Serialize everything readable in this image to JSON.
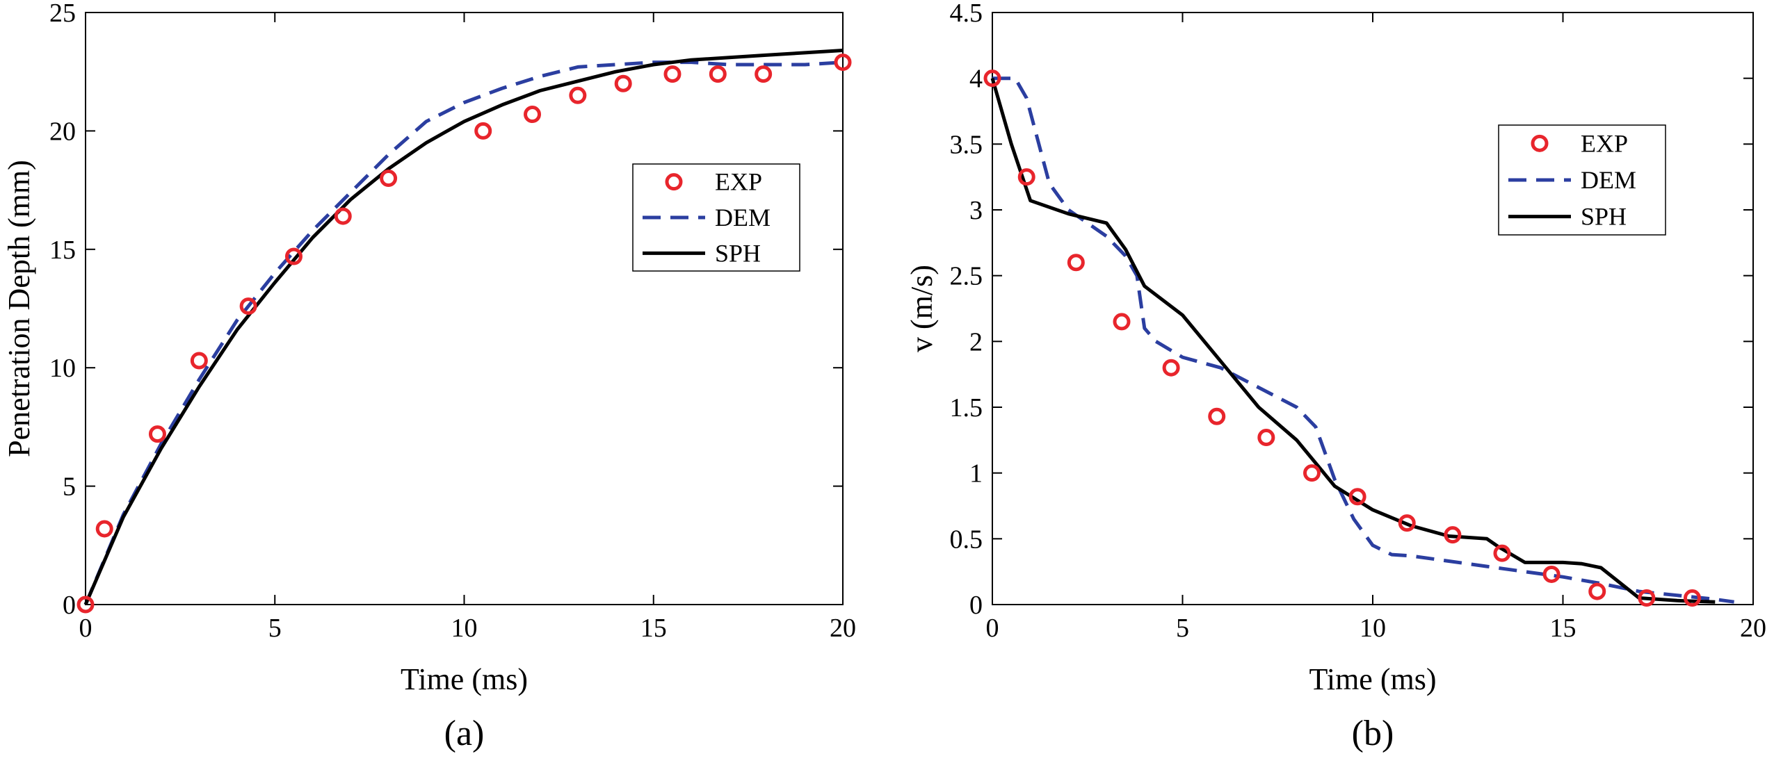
{
  "chart_data": [
    {
      "type": "line",
      "panel_label": "(a)",
      "xlabel": "Time (ms)",
      "ylabel": "Penetration Depth (mm)",
      "xlim": [
        0,
        20
      ],
      "ylim": [
        0,
        25
      ],
      "xticks": [
        0,
        5,
        10,
        15,
        20
      ],
      "yticks": [
        0,
        5,
        10,
        15,
        20,
        25
      ],
      "legend_position": "right",
      "series": [
        {
          "name": "EXP",
          "style": "markers",
          "color": "#e8252c",
          "x": [
            0,
            0.5,
            1.9,
            3.0,
            4.3,
            5.5,
            6.8,
            8.0,
            10.5,
            11.8,
            13.0,
            14.2,
            15.5,
            16.7,
            17.9,
            20.0
          ],
          "y": [
            0,
            3.2,
            7.2,
            10.3,
            12.6,
            14.7,
            16.4,
            18.0,
            20.0,
            20.7,
            21.5,
            22.0,
            22.4,
            22.4,
            22.4,
            22.9
          ]
        },
        {
          "name": "DEM",
          "style": "dashed",
          "color": "#2b3ea0",
          "x": [
            0,
            1,
            2,
            3,
            4,
            5,
            6,
            7,
            8,
            9,
            10,
            11,
            12,
            13,
            14,
            15,
            16,
            17,
            18,
            19,
            20
          ],
          "y": [
            0,
            3.8,
            6.8,
            9.5,
            12.0,
            14.0,
            15.8,
            17.4,
            19.0,
            20.4,
            21.2,
            21.8,
            22.3,
            22.7,
            22.8,
            22.9,
            22.9,
            22.8,
            22.8,
            22.8,
            22.9
          ]
        },
        {
          "name": "SPH",
          "style": "solid",
          "color": "#000000",
          "x": [
            0,
            1,
            2,
            3,
            4,
            5,
            6,
            7,
            8,
            9,
            10,
            11,
            12,
            13,
            14,
            15,
            16,
            17,
            18,
            19,
            20
          ],
          "y": [
            0,
            3.7,
            6.6,
            9.2,
            11.6,
            13.6,
            15.5,
            17.1,
            18.4,
            19.5,
            20.4,
            21.1,
            21.7,
            22.1,
            22.5,
            22.8,
            23.0,
            23.1,
            23.2,
            23.3,
            23.4
          ]
        }
      ]
    },
    {
      "type": "line",
      "panel_label": "(b)",
      "xlabel": "Time (ms)",
      "ylabel": "v (m/s)",
      "xlim": [
        0,
        20
      ],
      "ylim": [
        0,
        4.5
      ],
      "xticks": [
        0,
        5,
        10,
        15,
        20
      ],
      "yticks": [
        0,
        0.5,
        1,
        1.5,
        2,
        2.5,
        3,
        3.5,
        4,
        4.5
      ],
      "legend_position": "top-right",
      "series": [
        {
          "name": "EXP",
          "style": "markers",
          "color": "#e8252c",
          "x": [
            0,
            0.9,
            2.2,
            3.4,
            4.7,
            5.9,
            7.2,
            8.4,
            9.6,
            10.9,
            12.1,
            13.4,
            14.7,
            15.9,
            17.2,
            18.4
          ],
          "y": [
            4.0,
            3.25,
            2.6,
            2.15,
            1.8,
            1.43,
            1.27,
            1.0,
            0.82,
            0.62,
            0.53,
            0.39,
            0.23,
            0.1,
            0.05,
            0.05
          ]
        },
        {
          "name": "DEM",
          "style": "dashed",
          "color": "#2b3ea0",
          "x": [
            0,
            0.6,
            0.9,
            1.5,
            2.0,
            3.0,
            3.5,
            3.8,
            4.0,
            4.3,
            5.0,
            6.0,
            7.0,
            8.0,
            8.5,
            9.0,
            9.5,
            10.0,
            10.5,
            11.0,
            12.0,
            13.0,
            14.0,
            15.0,
            16.0,
            17.0,
            18.0,
            19.0,
            19.5
          ],
          "y": [
            4.0,
            4.0,
            3.85,
            3.2,
            3.0,
            2.8,
            2.65,
            2.5,
            2.1,
            2.0,
            1.88,
            1.8,
            1.65,
            1.5,
            1.35,
            0.95,
            0.65,
            0.45,
            0.38,
            0.37,
            0.33,
            0.29,
            0.25,
            0.21,
            0.16,
            0.1,
            0.07,
            0.04,
            0.02
          ]
        },
        {
          "name": "SPH",
          "style": "solid",
          "color": "#000000",
          "x": [
            0,
            0.5,
            1.0,
            2.0,
            3.0,
            3.5,
            4.0,
            5.0,
            6.0,
            7.0,
            8.0,
            9.0,
            10.0,
            11.0,
            12.0,
            13.0,
            13.3,
            14.0,
            15.0,
            15.5,
            16.0,
            17.0,
            18.0,
            19.0
          ],
          "y": [
            4.0,
            3.5,
            3.07,
            2.97,
            2.9,
            2.7,
            2.42,
            2.2,
            1.85,
            1.5,
            1.25,
            0.9,
            0.72,
            0.6,
            0.52,
            0.5,
            0.44,
            0.32,
            0.32,
            0.31,
            0.28,
            0.05,
            0.03,
            0.02
          ]
        }
      ]
    }
  ]
}
